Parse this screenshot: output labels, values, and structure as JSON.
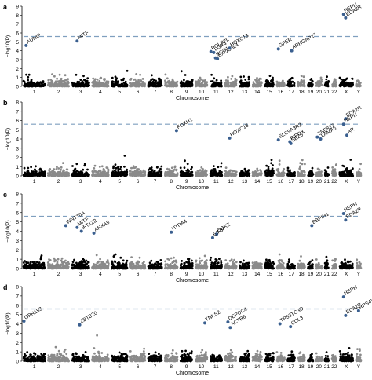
{
  "figure": {
    "threshold": 5.6,
    "threshold_color": "#7f9fbf",
    "colors": {
      "odd": "#000000",
      "even": "#8a8a8a",
      "label": "#000000"
    }
  },
  "chart_data": [
    {
      "type": "scatter",
      "panel_label": "a",
      "ylabel": "−log10(P)",
      "xlabel": "Chromosome",
      "ylim": [
        0,
        9
      ],
      "yticks": [
        0,
        1,
        2,
        3,
        4,
        5,
        6,
        7,
        8,
        9
      ],
      "chromosomes": [
        "1",
        "2",
        "3",
        "4",
        "5",
        "6",
        "7",
        "8",
        "9",
        "10",
        "11",
        "12",
        "13",
        "14",
        "15",
        "16",
        "17",
        "18",
        "19",
        "20",
        "21",
        "22",
        "X",
        "Y"
      ],
      "chromosome_ticks": [
        "1",
        "2",
        "3",
        "4",
        "5",
        "6",
        "7",
        "8",
        "9",
        "10",
        "11",
        "12",
        "13",
        "14",
        "15",
        "16",
        "17",
        "18",
        "19",
        "20",
        "21",
        "22",
        "X",
        "Y"
      ],
      "threshold": 5.6,
      "annotated": [
        {
          "gene": "AUNIP",
          "chr": "1",
          "pos": 0.12,
          "y": 4.6
        },
        {
          "gene": "MITF",
          "chr": "3",
          "pos": 0.3,
          "y": 5.1
        },
        {
          "gene": "POLR2L",
          "chr": "11",
          "pos": 0.05,
          "y": 3.9
        },
        {
          "gene": "LGR4",
          "chr": "11",
          "pos": 0.3,
          "y": 3.8
        },
        {
          "gene": "RCC1",
          "chr": "11",
          "pos": 0.45,
          "y": 3.2
        },
        {
          "gene": "EXOC3L4",
          "chr": "11",
          "pos": 0.62,
          "y": 3.1
        },
        {
          "gene": "HOXC13",
          "chr": "12",
          "pos": 0.4,
          "y": 4.3
        },
        {
          "gene": "GFER",
          "chr": "16",
          "pos": 0.2,
          "y": 4.2
        },
        {
          "gene": "ARHGAP27",
          "chr": "17",
          "pos": 0.55,
          "y": 4.0
        },
        {
          "gene": "HEPH",
          "chr": "X",
          "pos": 0.3,
          "y": 8.1
        },
        {
          "gene": "EDA2R",
          "chr": "X",
          "pos": 0.45,
          "y": 7.7
        }
      ]
    },
    {
      "type": "scatter",
      "panel_label": "b",
      "ylabel": "−log10(P)",
      "xlabel": "Chromosome",
      "ylim": [
        0,
        8
      ],
      "yticks": [
        0,
        1,
        2,
        3,
        4,
        5,
        6,
        7,
        8
      ],
      "chromosomes": [
        "1",
        "2",
        "3",
        "4",
        "5",
        "6",
        "7",
        "8",
        "9",
        "10",
        "11",
        "12",
        "13",
        "14",
        "15",
        "16",
        "17",
        "18",
        "19",
        "20",
        "21",
        "22",
        "X",
        "Y"
      ],
      "chromosome_ticks": [
        "1",
        "2",
        "3",
        "4",
        "5",
        "6",
        "7",
        "8",
        "9",
        "10",
        "11",
        "12",
        "13",
        "14",
        "15",
        "16",
        "17",
        "18",
        "19",
        "20",
        "21",
        "22",
        "X",
        "Y"
      ],
      "threshold": 5.6,
      "annotated": [
        {
          "gene": "FOXH1",
          "chr": "8",
          "pos": 0.92,
          "y": 4.9
        },
        {
          "gene": "HOXC13",
          "chr": "12",
          "pos": 0.4,
          "y": 4.1
        },
        {
          "gene": "SLC9A3R2",
          "chr": "16",
          "pos": 0.2,
          "y": 3.9
        },
        {
          "gene": "PIPOX",
          "chr": "17",
          "pos": 0.3,
          "y": 3.7
        },
        {
          "gene": "SEZ6",
          "chr": "17",
          "pos": 0.45,
          "y": 3.5
        },
        {
          "gene": "ZNF827",
          "chr": "20",
          "pos": 0.2,
          "y": 4.2
        },
        {
          "gene": "LAMA5",
          "chr": "20",
          "pos": 0.8,
          "y": 4.0
        },
        {
          "gene": "EDA2R",
          "chr": "X",
          "pos": 0.45,
          "y": 6.2
        },
        {
          "gene": "HEPH",
          "chr": "X",
          "pos": 0.3,
          "y": 5.6
        },
        {
          "gene": "AR",
          "chr": "X",
          "pos": 0.55,
          "y": 4.4
        }
      ]
    },
    {
      "type": "scatter",
      "panel_label": "c",
      "ylabel": "−log10(P)",
      "xlabel": "Chromosome",
      "ylim": [
        0,
        8
      ],
      "yticks": [
        0,
        1,
        2,
        3,
        4,
        5,
        6,
        7,
        8
      ],
      "chromosomes": [
        "1",
        "2",
        "3",
        "4",
        "5",
        "6",
        "7",
        "8",
        "9",
        "10",
        "11",
        "12",
        "13",
        "14",
        "15",
        "16",
        "17",
        "18",
        "19",
        "20",
        "21",
        "22",
        "X",
        "Y"
      ],
      "chromosome_ticks": [
        "1",
        "2",
        "3",
        "4",
        "5",
        "6",
        "7",
        "8",
        "9",
        "10",
        "11",
        "12",
        "13",
        "14",
        "15",
        "16",
        "17",
        "18",
        "19",
        "20",
        "21",
        "22",
        "X",
        "Y"
      ],
      "threshold": 5.6,
      "annotated": [
        {
          "gene": "WNT10A",
          "chr": "2",
          "pos": 0.85,
          "y": 4.6
        },
        {
          "gene": "MITF",
          "chr": "3",
          "pos": 0.3,
          "y": 4.4
        },
        {
          "gene": "IFT122",
          "chr": "3",
          "pos": 0.55,
          "y": 4.0
        },
        {
          "gene": "ANXA5",
          "chr": "4",
          "pos": 0.1,
          "y": 3.8
        },
        {
          "gene": "HTRA4",
          "chr": "8",
          "pos": 0.5,
          "y": 3.9
        },
        {
          "gene": "DGKZ",
          "chr": "11",
          "pos": 0.55,
          "y": 3.7
        },
        {
          "gene": "EIF3F",
          "chr": "11",
          "pos": 0.2,
          "y": 3.3
        },
        {
          "gene": "BBPIH1",
          "chr": "19",
          "pos": 0.75,
          "y": 4.6
        },
        {
          "gene": "HEPH",
          "chr": "X",
          "pos": 0.3,
          "y": 5.9
        },
        {
          "gene": "EDA2R",
          "chr": "X",
          "pos": 0.45,
          "y": 5.2
        }
      ]
    },
    {
      "type": "scatter",
      "panel_label": "d",
      "ylabel": "−log10(P)",
      "xlabel": "Chromosome",
      "ylim": [
        0,
        8
      ],
      "yticks": [
        0,
        1,
        2,
        3,
        4,
        5,
        6,
        7,
        8
      ],
      "chromosomes": [
        "1",
        "2",
        "3",
        "4",
        "5",
        "6",
        "7",
        "8",
        "9",
        "10",
        "11",
        "12",
        "13",
        "14",
        "15",
        "16",
        "17",
        "18",
        "19",
        "20",
        "21",
        "22",
        "X",
        "Y"
      ],
      "chromosome_ticks": [
        "1",
        "2",
        "3",
        "4",
        "5",
        "6",
        "7",
        "8",
        "9",
        "10",
        "11",
        "12",
        "13",
        "14",
        "15",
        "16",
        "17",
        "18",
        "19",
        "20",
        "21",
        "22",
        "X",
        "Y"
      ],
      "threshold": 5.6,
      "annotated": [
        {
          "gene": "GPR153",
          "chr": "1",
          "pos": 0.02,
          "y": 4.3
        },
        {
          "gene": "ZBTB20",
          "chr": "3",
          "pos": 0.45,
          "y": 3.9
        },
        {
          "gene": "TNKS2",
          "chr": "10",
          "pos": 0.8,
          "y": 4.1
        },
        {
          "gene": "DEPDC4",
          "chr": "12",
          "pos": 0.25,
          "y": 4.2
        },
        {
          "gene": "ACTR6",
          "chr": "12",
          "pos": 0.45,
          "y": 3.6
        },
        {
          "gene": "TP53TG3D",
          "chr": "16",
          "pos": 0.4,
          "y": 4.0
        },
        {
          "gene": "CCL3",
          "chr": "17",
          "pos": 0.4,
          "y": 3.7
        },
        {
          "gene": "HEPH",
          "chr": "X",
          "pos": 0.3,
          "y": 6.9
        },
        {
          "gene": "RPS4Y2",
          "chr": "Y",
          "pos": 0.5,
          "y": 5.4
        },
        {
          "gene": "EDA2R",
          "chr": "X",
          "pos": 0.45,
          "y": 4.9
        }
      ]
    }
  ]
}
